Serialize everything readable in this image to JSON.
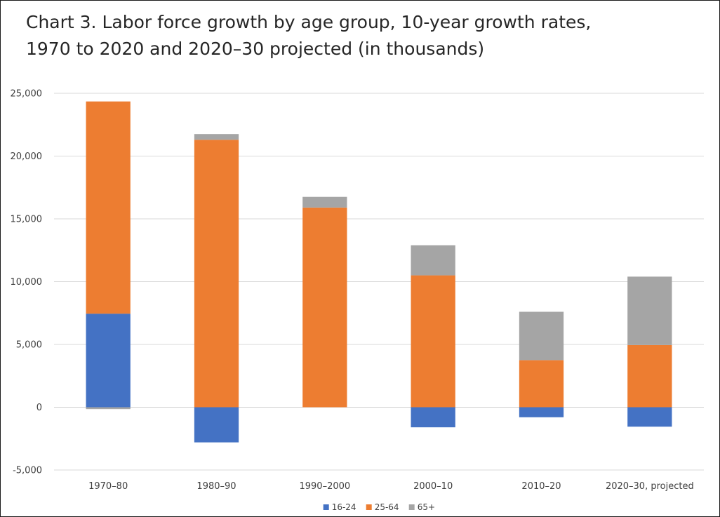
{
  "chart_data": {
    "type": "bar",
    "stacked": true,
    "title_line1": "Chart 3. Labor force growth by age group, 10-year growth rates,",
    "title_line2": "1970 to 2020 and 2020–30 projected (in thousands)",
    "xlabel": "",
    "ylabel": "",
    "categories": [
      "1970–80",
      "1980–90",
      "1990–2000",
      "2000–10",
      "2010–20",
      "2020–30, projected"
    ],
    "series": [
      {
        "name": "16-24",
        "color": "#4472c4",
        "values": [
          7450,
          -2800,
          0,
          -1600,
          -800,
          -1550
        ]
      },
      {
        "name": "25-64",
        "color": "#ed7d31",
        "values": [
          16900,
          21300,
          15900,
          10500,
          3750,
          4950
        ]
      },
      {
        "name": "65+",
        "color": "#a5a5a5",
        "values": [
          -150,
          450,
          850,
          2400,
          3850,
          5450
        ]
      }
    ],
    "ylim": [
      -5000,
      25000
    ],
    "yticks": [
      -5000,
      0,
      5000,
      10000,
      15000,
      20000,
      25000
    ],
    "ytick_labels": [
      "-5,000",
      "0",
      "5,000",
      "10,000",
      "15,000",
      "20,000",
      "25,000"
    ],
    "grid": true,
    "legend_position": "bottom"
  }
}
